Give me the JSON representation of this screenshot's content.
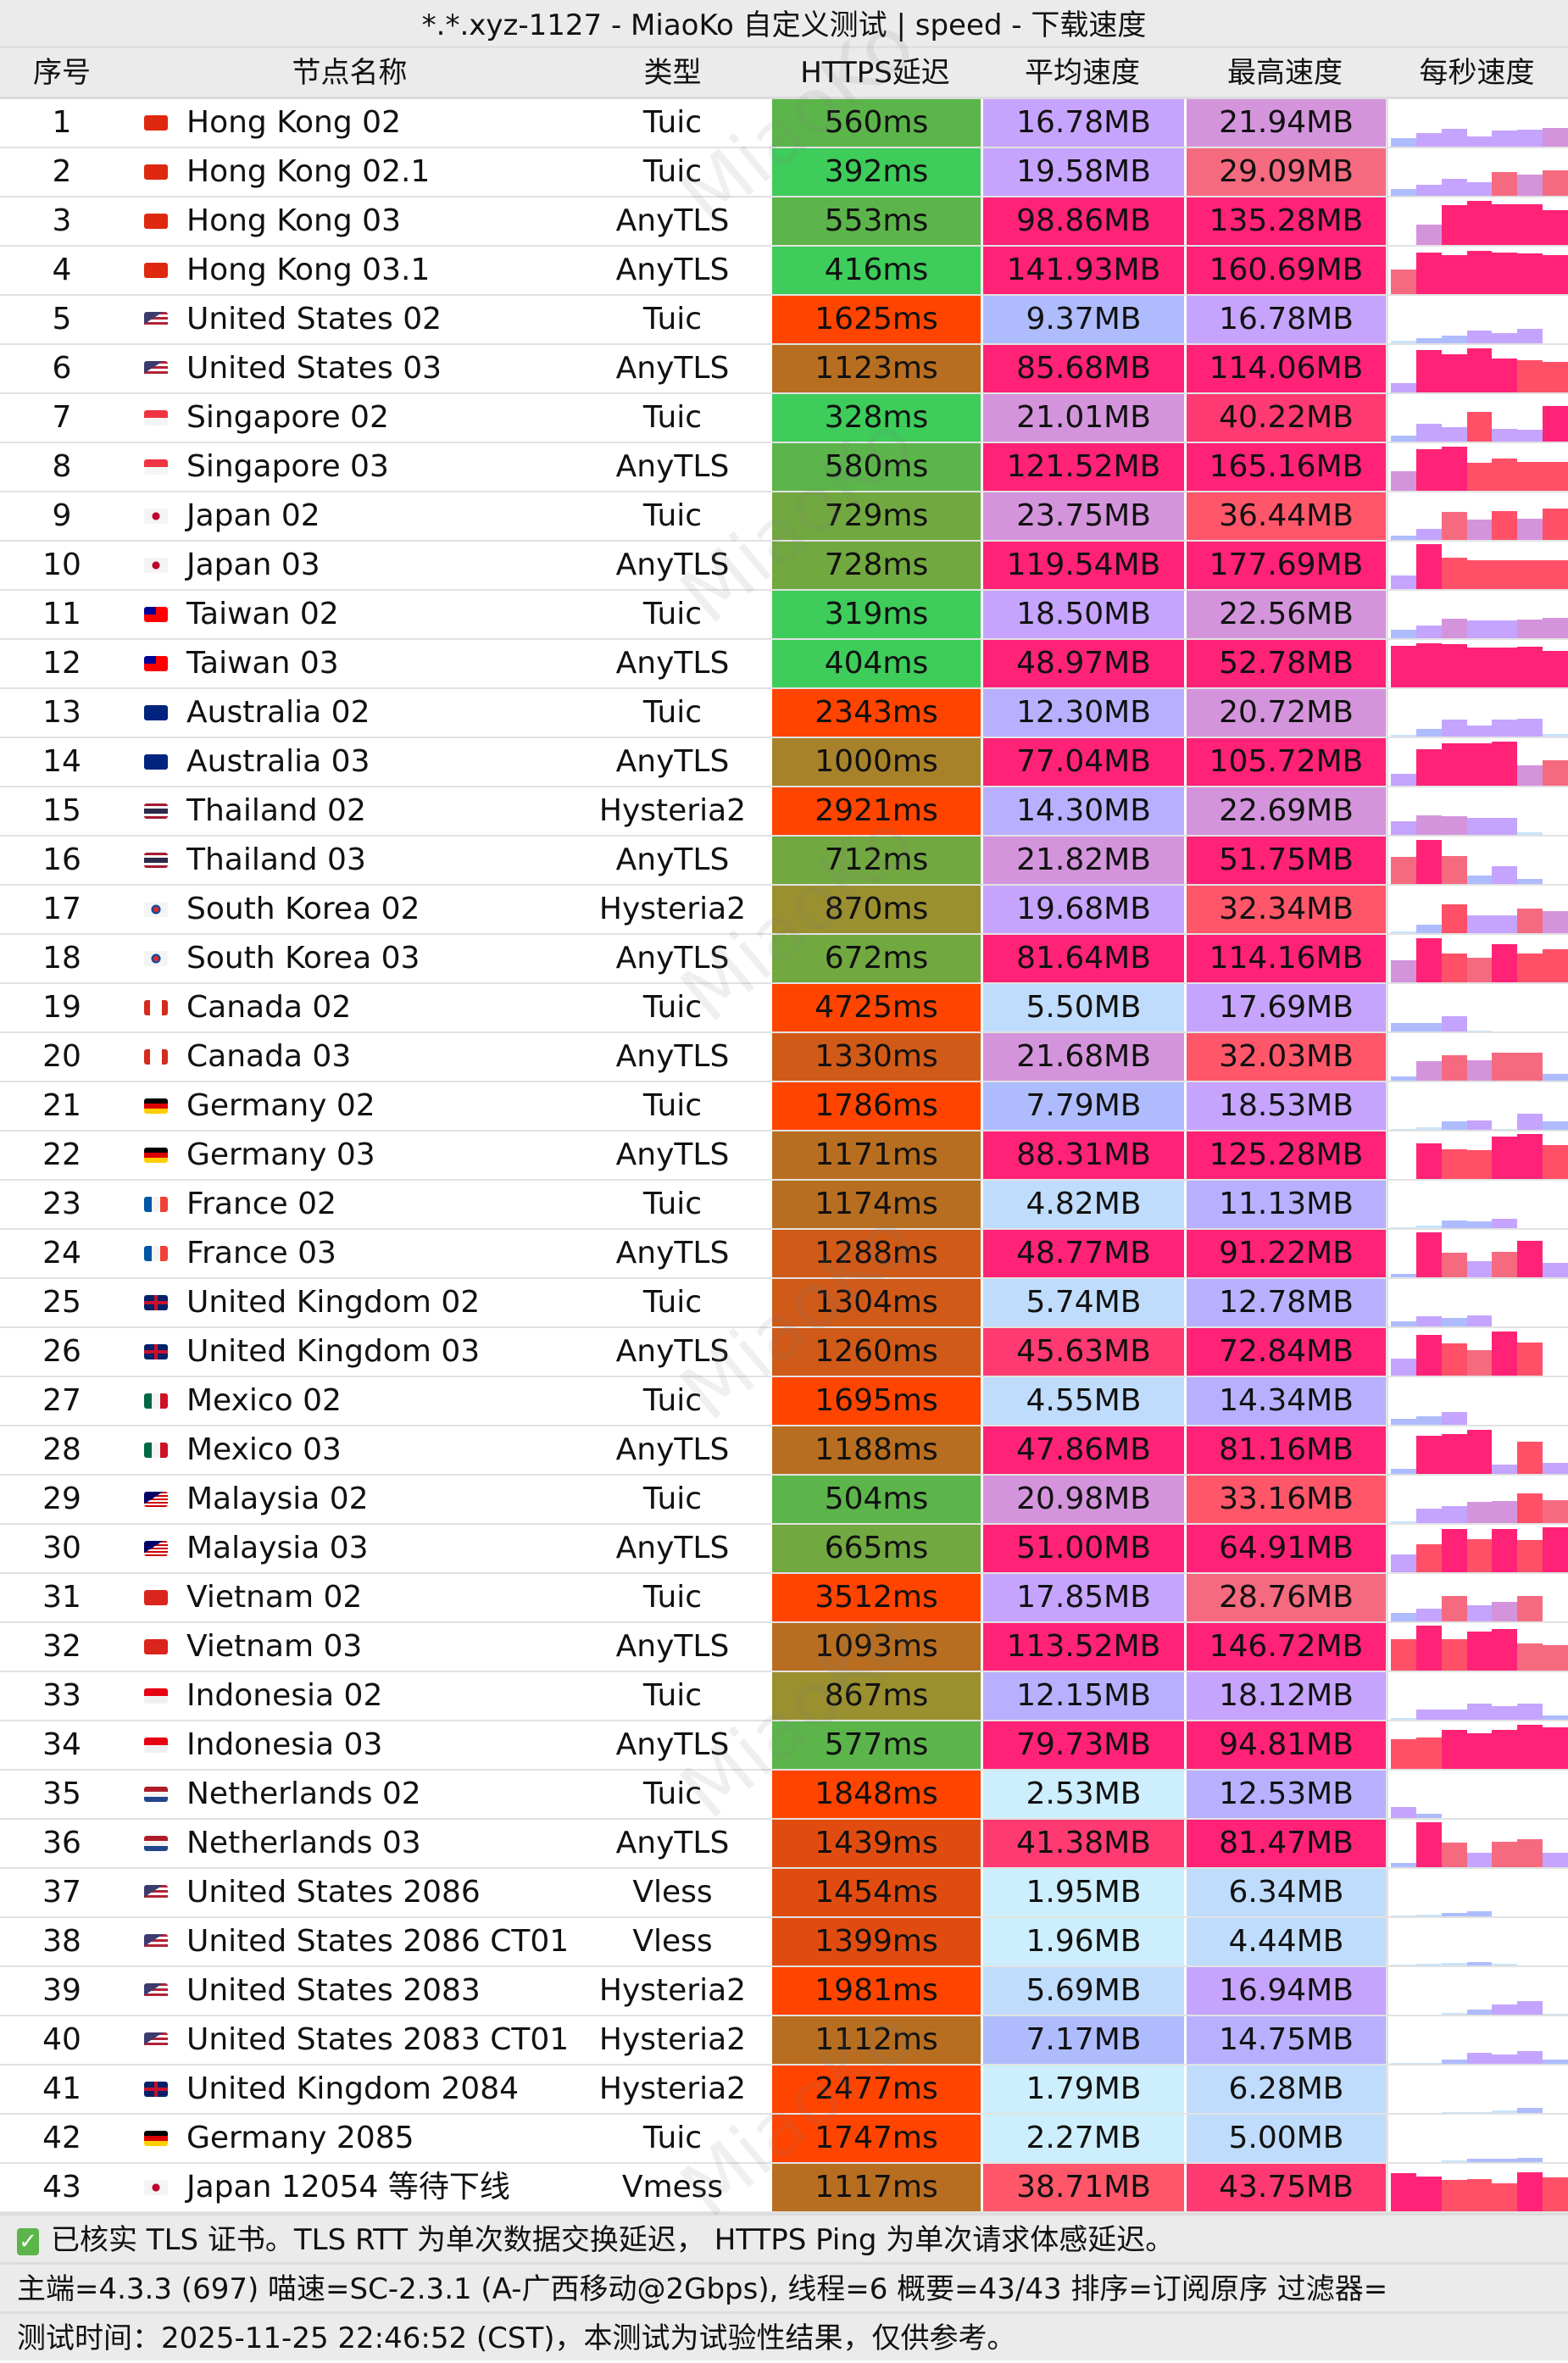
{
  "title": "*.*.xyz-1127 - MiaoKo 自定义测试 | speed - 下载速度",
  "watermark": "MiaoKo",
  "columns": [
    "序号",
    "节点名称",
    "类型",
    "HTTPS延迟",
    "平均速度",
    "最高速度",
    "每秒速度"
  ],
  "colors": {
    "latency_scale": [
      [
        420,
        "#3ecc5a"
      ],
      [
        600,
        "#5cb54a"
      ],
      [
        750,
        "#72a840"
      ],
      [
        900,
        "#9a9030"
      ],
      [
        1050,
        "#a8822a"
      ],
      [
        1200,
        "#b86e20"
      ],
      [
        1350,
        "#d05a18"
      ],
      [
        1500,
        "#e04c10"
      ],
      [
        999999,
        "#ff4400"
      ]
    ],
    "speed_scale_mb": [
      [
        3,
        "#cdeefc"
      ],
      [
        7,
        "#c0dcfc"
      ],
      [
        10,
        "#aebcfe"
      ],
      [
        16,
        "#b8b0fe"
      ],
      [
        20,
        "#c6a4fe"
      ],
      [
        25,
        "#d494dc"
      ],
      [
        30,
        "#f66a80"
      ],
      [
        40,
        "#ff566a"
      ],
      [
        47,
        "#ff3a72"
      ],
      [
        999999,
        "#ff2277"
      ]
    ],
    "bar_scale": [
      [
        0.06,
        "#c8e4fa"
      ],
      [
        0.2,
        "#aebcfe"
      ],
      [
        0.4,
        "#c4a4fe"
      ],
      [
        0.5,
        "#d494dc"
      ],
      [
        0.62,
        "#f66a80"
      ],
      [
        0.75,
        "#ff5068"
      ],
      [
        2,
        "#ff2277"
      ]
    ]
  },
  "rows": [
    {
      "idx": "1",
      "flag": "hk",
      "name": "Hong Kong 02",
      "type": "Tuic",
      "latency": "560ms",
      "avg": "16.78MB",
      "max": "21.94MB",
      "per_second": [
        0.18,
        0.3,
        0.39,
        0.23,
        0.35,
        0.37,
        0.42
      ]
    },
    {
      "idx": "2",
      "flag": "hk",
      "name": "Hong Kong 02.1",
      "type": "Tuic",
      "latency": "392ms",
      "avg": "19.58MB",
      "max": "29.09MB",
      "per_second": [
        0.15,
        0.24,
        0.37,
        0.31,
        0.53,
        0.47,
        0.56
      ]
    },
    {
      "idx": "3",
      "flag": "hk",
      "name": "Hong Kong 03",
      "type": "AnyTLS",
      "latency": "553ms",
      "avg": "98.86MB",
      "max": "135.28MB",
      "per_second": [
        0,
        0.45,
        0.89,
        0.98,
        0.91,
        0.91,
        0.78
      ]
    },
    {
      "idx": "4",
      "flag": "hk",
      "name": "Hong Kong 03.1",
      "type": "AnyTLS",
      "latency": "416ms",
      "avg": "141.93MB",
      "max": "160.69MB",
      "per_second": [
        0.54,
        0.93,
        0.86,
        0.97,
        0.93,
        0.91,
        0.87
      ]
    },
    {
      "idx": "5",
      "flag": "us",
      "name": "United States 02",
      "type": "Tuic",
      "latency": "1625ms",
      "avg": "9.37MB",
      "max": "16.78MB",
      "per_second": [
        0.05,
        0.11,
        0.17,
        0.29,
        0.23,
        0.32,
        0
      ]
    },
    {
      "idx": "6",
      "flag": "us",
      "name": "United States 03",
      "type": "AnyTLS",
      "latency": "1123ms",
      "avg": "85.68MB",
      "max": "114.06MB",
      "per_second": [
        0.21,
        0.95,
        0.84,
        0.99,
        0.76,
        0.71,
        0.68
      ]
    },
    {
      "idx": "7",
      "flag": "sg",
      "name": "Singapore 02",
      "type": "Tuic",
      "latency": "328ms",
      "avg": "21.01MB",
      "max": "40.22MB",
      "per_second": [
        0.14,
        0.39,
        0.32,
        0.67,
        0.28,
        0.26,
        0.79
      ]
    },
    {
      "idx": "8",
      "flag": "sg",
      "name": "Singapore 03",
      "type": "AnyTLS",
      "latency": "580ms",
      "avg": "121.52MB",
      "max": "165.16MB",
      "per_second": [
        0.44,
        0.93,
        0.99,
        0.63,
        0.72,
        0.65,
        0.65
      ]
    },
    {
      "idx": "9",
      "flag": "jp",
      "name": "Japan 02",
      "type": "Tuic",
      "latency": "729ms",
      "avg": "23.75MB",
      "max": "36.44MB",
      "per_second": [
        0.09,
        0.25,
        0.62,
        0.45,
        0.64,
        0.48,
        0.7
      ]
    },
    {
      "idx": "10",
      "flag": "jp",
      "name": "Japan 03",
      "type": "AnyTLS",
      "latency": "728ms",
      "avg": "119.54MB",
      "max": "177.69MB",
      "per_second": [
        0.31,
        1,
        0.69,
        0.65,
        0.65,
        0.65,
        0.65
      ]
    },
    {
      "idx": "11",
      "flag": "tw",
      "name": "Taiwan 02",
      "type": "Tuic",
      "latency": "319ms",
      "avg": "18.50MB",
      "max": "22.56MB",
      "per_second": [
        0.19,
        0.28,
        0.44,
        0.4,
        0.4,
        0.42,
        0.45
      ]
    },
    {
      "idx": "12",
      "flag": "tw",
      "name": "Taiwan 03",
      "type": "AnyTLS",
      "latency": "404ms",
      "avg": "48.97MB",
      "max": "52.78MB",
      "per_second": [
        0.93,
        0.99,
        0.97,
        0.88,
        0.88,
        0.9,
        0.81
      ]
    },
    {
      "idx": "13",
      "flag": "au",
      "name": "Australia 02",
      "type": "Tuic",
      "latency": "2343ms",
      "avg": "12.30MB",
      "max": "20.72MB",
      "per_second": [
        0.04,
        0.17,
        0.37,
        0.25,
        0.37,
        0.4,
        0.06
      ]
    },
    {
      "idx": "14",
      "flag": "au",
      "name": "Australia 03",
      "type": "AnyTLS",
      "latency": "1000ms",
      "avg": "77.04MB",
      "max": "105.72MB",
      "per_second": [
        0.26,
        0.81,
        0.94,
        0.95,
        0.99,
        0.46,
        0.56
      ]
    },
    {
      "idx": "15",
      "flag": "th",
      "name": "Thailand 02",
      "type": "Hysteria2",
      "latency": "2921ms",
      "avg": "14.30MB",
      "max": "22.69MB",
      "per_second": [
        0.3,
        0.44,
        0.41,
        0.37,
        0.37,
        0.05,
        0
      ]
    },
    {
      "idx": "16",
      "flag": "th",
      "name": "Thailand 03",
      "type": "AnyTLS",
      "latency": "712ms",
      "avg": "21.82MB",
      "max": "51.75MB",
      "per_second": [
        0.6,
        0.99,
        0.62,
        0.18,
        0.39,
        0.11,
        0
      ]
    },
    {
      "idx": "17",
      "flag": "kr",
      "name": "South Korea 02",
      "type": "Hysteria2",
      "latency": "870ms",
      "avg": "19.68MB",
      "max": "32.34MB",
      "per_second": [
        0.04,
        0.19,
        0.64,
        0.39,
        0.39,
        0.55,
        0.49
      ]
    },
    {
      "idx": "18",
      "flag": "kr",
      "name": "South Korea 03",
      "type": "AnyTLS",
      "latency": "672ms",
      "avg": "81.64MB",
      "max": "114.16MB",
      "per_second": [
        0.5,
        0.99,
        0.65,
        0.55,
        0.85,
        0.65,
        0.73
      ]
    },
    {
      "idx": "19",
      "flag": "ca",
      "name": "Canada 02",
      "type": "Tuic",
      "latency": "4725ms",
      "avg": "5.50MB",
      "max": "17.69MB",
      "per_second": [
        0.18,
        0.18,
        0.34,
        0.02,
        0,
        0,
        0
      ]
    },
    {
      "idx": "20",
      "flag": "ca",
      "name": "Canada 03",
      "type": "AnyTLS",
      "latency": "1330ms",
      "avg": "21.68MB",
      "max": "32.03MB",
      "per_second": [
        0.09,
        0.43,
        0.56,
        0.46,
        0.62,
        0.62,
        0.16
      ]
    },
    {
      "idx": "21",
      "flag": "de",
      "name": "Germany 02",
      "type": "Tuic",
      "latency": "1786ms",
      "avg": "7.79MB",
      "max": "18.53MB",
      "per_second": [
        0.01,
        0.05,
        0.19,
        0.21,
        0.02,
        0.35,
        0.19
      ]
    },
    {
      "idx": "22",
      "flag": "de",
      "name": "Germany 03",
      "type": "AnyTLS",
      "latency": "1171ms",
      "avg": "88.31MB",
      "max": "125.28MB",
      "per_second": [
        0,
        0.8,
        0.66,
        0.64,
        0.94,
        1,
        0.75
      ]
    },
    {
      "idx": "23",
      "flag": "fr",
      "name": "France 02",
      "type": "Tuic",
      "latency": "1174ms",
      "avg": "4.82MB",
      "max": "11.13MB",
      "per_second": [
        0.02,
        0.05,
        0.17,
        0.16,
        0.21,
        0,
        0
      ]
    },
    {
      "idx": "24",
      "flag": "fr",
      "name": "France 03",
      "type": "AnyTLS",
      "latency": "1288ms",
      "avg": "48.77MB",
      "max": "91.22MB",
      "per_second": [
        0.07,
        1,
        0.55,
        0.35,
        0.57,
        0.81,
        0.32
      ]
    },
    {
      "idx": "25",
      "flag": "gb",
      "name": "United Kingdom 02",
      "type": "Tuic",
      "latency": "1304ms",
      "avg": "5.74MB",
      "max": "12.78MB",
      "per_second": [
        0.11,
        0.22,
        0.19,
        0.25,
        0,
        0,
        0
      ]
    },
    {
      "idx": "26",
      "flag": "gb",
      "name": "United Kingdom 03",
      "type": "AnyTLS",
      "latency": "1260ms",
      "avg": "45.63MB",
      "max": "72.84MB",
      "per_second": [
        0.37,
        0.9,
        0.71,
        0.57,
        0.99,
        0.74,
        0
      ]
    },
    {
      "idx": "27",
      "flag": "mx",
      "name": "Mexico 02",
      "type": "Tuic",
      "latency": "1695ms",
      "avg": "4.55MB",
      "max": "14.34MB",
      "per_second": [
        0.14,
        0.18,
        0.28,
        0,
        0,
        0,
        0
      ]
    },
    {
      "idx": "28",
      "flag": "mx",
      "name": "Mexico 03",
      "type": "AnyTLS",
      "latency": "1188ms",
      "avg": "47.86MB",
      "max": "81.16MB",
      "per_second": [
        0.12,
        0.85,
        0.89,
        0.99,
        0.21,
        0.72,
        0.24
      ]
    },
    {
      "idx": "29",
      "flag": "my",
      "name": "Malaysia 02",
      "type": "Tuic",
      "latency": "504ms",
      "avg": "20.98MB",
      "max": "33.16MB",
      "per_second": [
        0.04,
        0.32,
        0.37,
        0.48,
        0.5,
        0.66,
        0.51
      ]
    },
    {
      "idx": "30",
      "flag": "my",
      "name": "Malaysia 03",
      "type": "AnyTLS",
      "latency": "665ms",
      "avg": "51.00MB",
      "max": "64.91MB",
      "per_second": [
        0.39,
        0.63,
        0.96,
        0.74,
        0.96,
        0.72,
        1
      ]
    },
    {
      "idx": "31",
      "flag": "vn",
      "name": "Vietnam 02",
      "type": "Tuic",
      "latency": "3512ms",
      "avg": "17.85MB",
      "max": "28.76MB",
      "per_second": [
        0.19,
        0.29,
        0.56,
        0.35,
        0.44,
        0.56,
        0
      ]
    },
    {
      "idx": "32",
      "flag": "vn",
      "name": "Vietnam 03",
      "type": "AnyTLS",
      "latency": "1093ms",
      "avg": "113.52MB",
      "max": "146.72MB",
      "per_second": [
        0.69,
        1,
        0.69,
        0.87,
        0.92,
        0.6,
        0.56
      ]
    },
    {
      "idx": "33",
      "flag": "id",
      "name": "Indonesia 02",
      "type": "Tuic",
      "latency": "867ms",
      "avg": "12.15MB",
      "max": "18.12MB",
      "per_second": [
        0.03,
        0.22,
        0.22,
        0.35,
        0.31,
        0.35,
        0.1
      ]
    },
    {
      "idx": "34",
      "flag": "id",
      "name": "Indonesia 03",
      "type": "AnyTLS",
      "latency": "577ms",
      "avg": "79.73MB",
      "max": "94.81MB",
      "per_second": [
        0.66,
        0.69,
        0.86,
        0.79,
        0.86,
        0.99,
        0.92
      ]
    },
    {
      "idx": "35",
      "flag": "nl",
      "name": "Netherlands 02",
      "type": "Tuic",
      "latency": "1848ms",
      "avg": "2.53MB",
      "max": "12.53MB",
      "per_second": [
        0.25,
        0.09,
        0,
        0,
        0,
        0,
        0
      ]
    },
    {
      "idx": "36",
      "flag": "nl",
      "name": "Netherlands 03",
      "type": "AnyTLS",
      "latency": "1439ms",
      "avg": "41.38MB",
      "max": "81.47MB",
      "per_second": [
        0.1,
        1,
        0.55,
        0.32,
        0.56,
        0.62,
        0.32
      ]
    },
    {
      "idx": "37",
      "flag": "us",
      "name": "United States 2086",
      "type": "Vless",
      "latency": "1454ms",
      "avg": "1.95MB",
      "max": "6.34MB",
      "per_second": [
        0.02,
        0.03,
        0.07,
        0.12,
        0,
        0,
        0
      ]
    },
    {
      "idx": "38",
      "flag": "us",
      "name": "United States 2086 CT01",
      "type": "Vless",
      "latency": "1399ms",
      "avg": "1.96MB",
      "max": "4.44MB",
      "per_second": [
        0.01,
        0.03,
        0.05,
        0.07,
        0.03,
        0,
        0
      ]
    },
    {
      "idx": "39",
      "flag": "us",
      "name": "United States 2083",
      "type": "Hysteria2",
      "latency": "1981ms",
      "avg": "5.69MB",
      "max": "16.94MB",
      "per_second": [
        0,
        0,
        0.03,
        0.12,
        0.22,
        0.31,
        0.01
      ]
    },
    {
      "idx": "40",
      "flag": "us",
      "name": "United States 2083 CT01",
      "type": "Hysteria2",
      "latency": "1112ms",
      "avg": "7.17MB",
      "max": "14.75MB",
      "per_second": [
        0.01,
        0.01,
        0.09,
        0.24,
        0.21,
        0.28,
        0.09
      ]
    },
    {
      "idx": "41",
      "flag": "gb",
      "name": "United Kingdom 2084",
      "type": "Hysteria2",
      "latency": "2477ms",
      "avg": "1.79MB",
      "max": "6.28MB",
      "per_second": [
        0,
        0,
        0.01,
        0.01,
        0.06,
        0.11,
        0
      ]
    },
    {
      "idx": "42",
      "flag": "de",
      "name": "Germany 2085",
      "type": "Tuic",
      "latency": "1747ms",
      "avg": "2.27MB",
      "max": "5.00MB",
      "per_second": [
        0,
        0,
        0.04,
        0.07,
        0.07,
        0.09,
        0
      ]
    },
    {
      "idx": "43",
      "flag": "jp",
      "name": "Japan 12054 等待下线",
      "type": "Vmess",
      "latency": "1117ms",
      "avg": "38.71MB",
      "max": "43.75MB",
      "per_second": [
        0.85,
        0.78,
        0.7,
        0.72,
        0.63,
        0.86,
        0.75
      ]
    }
  ],
  "footer": {
    "check_icon": "check-box-icon",
    "line1": "已核实 TLS 证书。TLS RTT 为单次数据交换延迟， HTTPS Ping 为单次请求体感延迟。",
    "line2": "主端=4.3.3 (697) 喵速=SC-2.3.1 (A-广西移动@2Gbps), 线程=6 概要=43/43 排序=订阅原序 过滤器=",
    "line3": "测试时间：2025-11-25 22:46:52 (CST)，本测试为试验性结果，仅供参考。"
  }
}
